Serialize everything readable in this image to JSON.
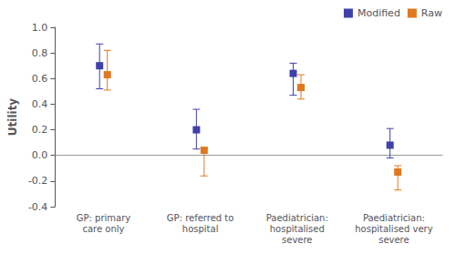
{
  "chart_data": {
    "type": "scatter",
    "ylabel": "Utility",
    "categories": [
      "GP: primary\ncare only",
      "GP: referred to\nhospital",
      "Paediatrician:\nhospitalised\nsevere",
      "Paediatrician:\nhospitalised very\nsevere"
    ],
    "series": [
      {
        "name": "Modified",
        "color": "#4040aa",
        "marker": "square",
        "values": [
          0.7,
          0.2,
          0.64,
          0.08
        ],
        "ci_low": [
          0.52,
          0.05,
          0.47,
          -0.02
        ],
        "ci_high": [
          0.87,
          0.36,
          0.72,
          0.21
        ]
      },
      {
        "name": "Raw",
        "color": "#e07820",
        "marker": "square",
        "values": [
          0.63,
          0.04,
          0.53,
          -0.13
        ],
        "ci_low": [
          0.51,
          -0.16,
          0.44,
          -0.27
        ],
        "ci_high": [
          0.82,
          0.06,
          0.63,
          -0.08
        ]
      }
    ],
    "ylim": [
      -0.4,
      1.0
    ],
    "yticks": [
      -0.4,
      -0.2,
      {
        "value": 0.0,
        "label": "0.0"
      },
      0.2,
      0.4,
      0.6,
      0.8,
      {
        "value": 1.0,
        "label": "1.0"
      }
    ],
    "grid": false,
    "legend": "upper right"
  }
}
